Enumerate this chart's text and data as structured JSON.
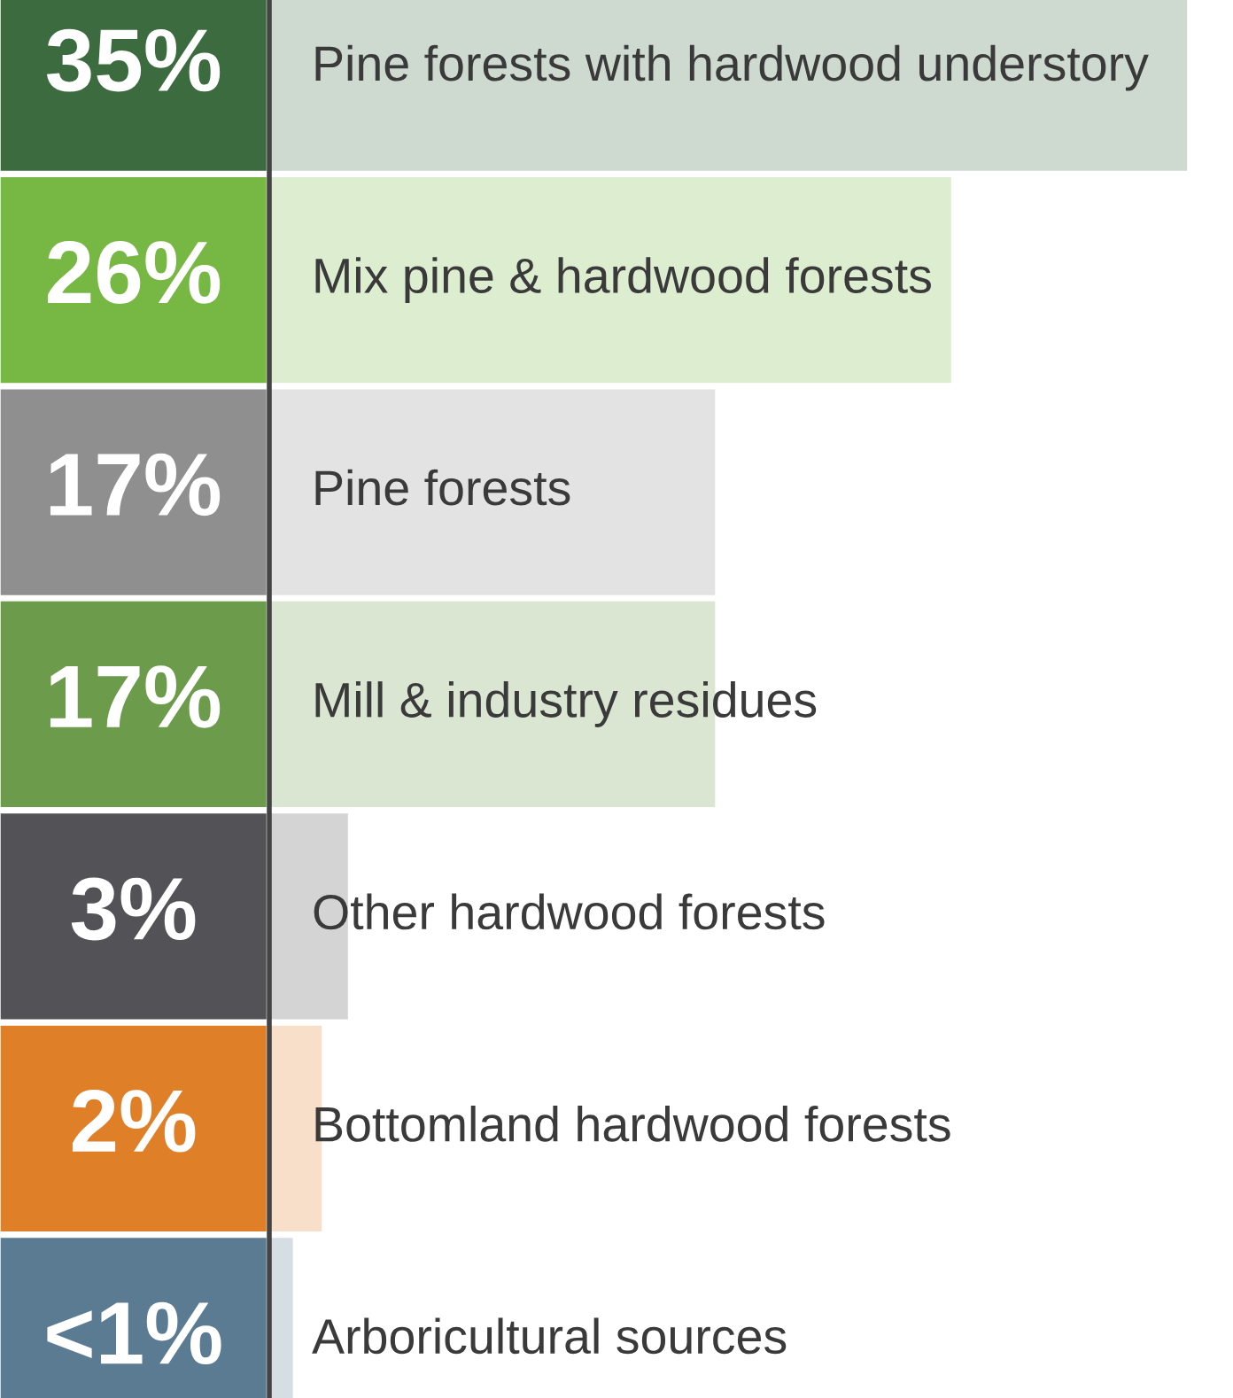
{
  "chart_data": {
    "type": "bar",
    "orientation": "horizontal",
    "categories": [
      "Pine forests with hardwood understory",
      "Mix pine & hardwood forests",
      "Pine forests",
      "Mill & industry residues",
      "Other hardwood forests",
      "Bottomland hardwood forests",
      "Arboricultural sources"
    ],
    "values": [
      35,
      26,
      17,
      17,
      3,
      2,
      0.9
    ],
    "value_labels": [
      "35%",
      "26%",
      "17%",
      "17%",
      "3%",
      "2%",
      "<1%"
    ],
    "colors": [
      "#cedacf",
      "#ddedd0",
      "#e3e3e3",
      "#dae6d2",
      "#d4d4d5",
      "#f7dfc9",
      "#d6dee4"
    ]
  }
}
